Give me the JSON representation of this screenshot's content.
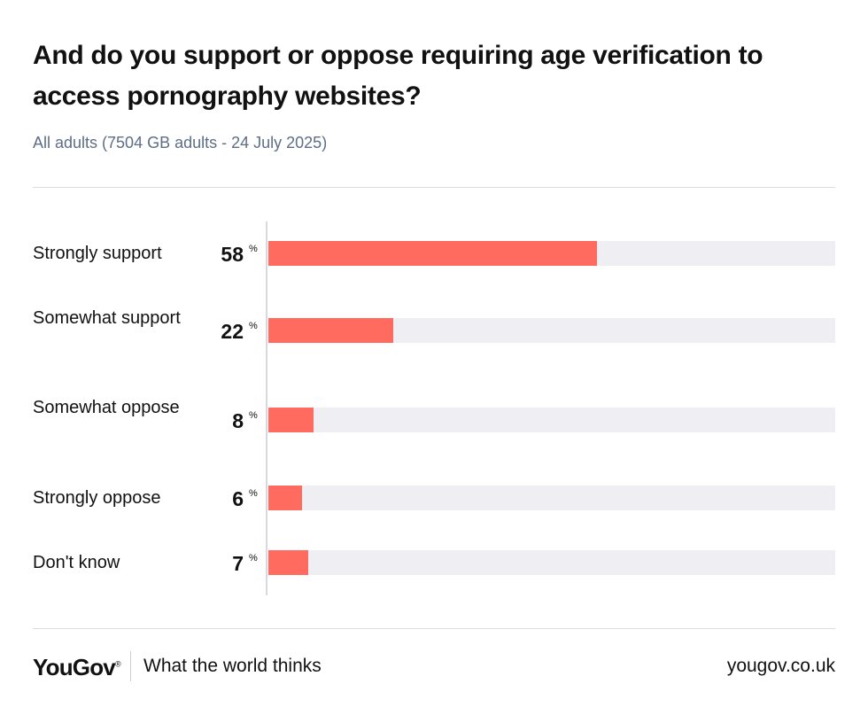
{
  "chart_data": {
    "type": "bar",
    "orientation": "horizontal",
    "title": "And do you support or oppose requiring age verification to access pornography websites?",
    "subtitle": "All adults (7504 GB adults - 24 July 2025)",
    "unit": "%",
    "xlim": [
      0,
      100
    ],
    "categories": [
      "Strongly support",
      "Somewhat support",
      "Somewhat oppose",
      "Strongly oppose",
      "Don't know"
    ],
    "values": [
      58,
      22,
      8,
      6,
      7
    ],
    "series": [
      {
        "name": "All adults",
        "values": [
          58,
          22,
          8,
          6,
          7
        ]
      }
    ]
  },
  "footer": {
    "brand": "YouGov",
    "registered": "®",
    "tagline": "What the world thinks",
    "url": "yougov.co.uk"
  },
  "colors": {
    "bar": "#ff6b5e",
    "track": "#efeff3",
    "subtitle": "#5d6e86"
  }
}
